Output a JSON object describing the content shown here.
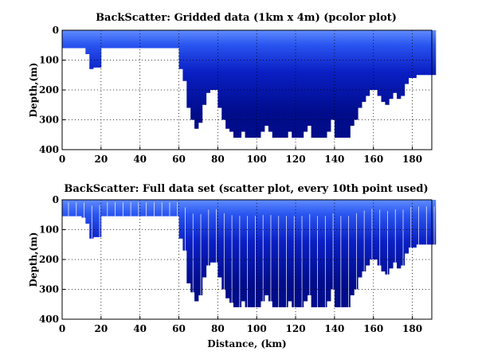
{
  "chart_data": [
    {
      "type": "heatmap",
      "title": "BackScatter: Gridded data (1km x 4m) (pcolor plot)",
      "xlabel": "",
      "ylabel": "Depth,(m)",
      "xlim": [
        0,
        190
      ],
      "ylim": [
        400,
        0
      ],
      "xticks": [
        0,
        20,
        40,
        60,
        80,
        100,
        120,
        140,
        160,
        180
      ],
      "yticks": [
        0,
        100,
        200,
        300,
        400
      ],
      "grid": true,
      "colors": {
        "deep": "#000c8a",
        "mid": "#0a1fc4",
        "shallow": "#2a55f0",
        "surface": "#5f8cff"
      },
      "x": [
        0,
        2,
        4,
        6,
        8,
        10,
        12,
        14,
        16,
        18,
        20,
        22,
        24,
        26,
        28,
        30,
        32,
        34,
        36,
        38,
        40,
        42,
        44,
        46,
        48,
        50,
        52,
        54,
        56,
        58,
        60,
        62,
        64,
        66,
        68,
        70,
        72,
        74,
        76,
        78,
        80,
        82,
        84,
        86,
        88,
        90,
        92,
        94,
        96,
        98,
        100,
        102,
        104,
        106,
        108,
        110,
        112,
        114,
        116,
        118,
        120,
        122,
        124,
        126,
        128,
        130,
        132,
        134,
        136,
        138,
        140,
        142,
        144,
        146,
        148,
        150,
        152,
        154,
        156,
        158,
        160,
        162,
        164,
        166,
        168,
        170,
        172,
        174,
        176,
        178,
        180,
        182,
        184,
        186,
        188,
        190
      ],
      "max_depth": [
        60,
        60,
        60,
        60,
        60,
        60,
        80,
        130,
        125,
        125,
        60,
        60,
        60,
        60,
        60,
        60,
        60,
        60,
        60,
        60,
        60,
        60,
        60,
        60,
        60,
        60,
        60,
        60,
        60,
        60,
        130,
        170,
        260,
        300,
        330,
        310,
        250,
        210,
        200,
        200,
        260,
        300,
        330,
        340,
        360,
        360,
        340,
        360,
        360,
        360,
        360,
        340,
        320,
        340,
        360,
        360,
        360,
        360,
        340,
        360,
        360,
        360,
        340,
        320,
        360,
        360,
        360,
        360,
        340,
        300,
        360,
        360,
        360,
        360,
        320,
        300,
        260,
        240,
        220,
        200,
        200,
        220,
        240,
        250,
        230,
        210,
        230,
        220,
        180,
        160,
        160,
        150,
        150,
        150,
        150,
        150
      ]
    },
    {
      "type": "scatter",
      "title": "BackScatter: Full data set (scatter plot, every 10th point used)",
      "xlabel": "Distance, (km)",
      "ylabel": "Depth,(m)",
      "xlim": [
        0,
        190
      ],
      "ylim": [
        400,
        0
      ],
      "xticks": [
        0,
        20,
        40,
        60,
        80,
        100,
        120,
        140,
        160,
        180
      ],
      "yticks": [
        0,
        100,
        200,
        300,
        400
      ],
      "grid": true,
      "colors": {
        "deep": "#000c8a",
        "mid": "#0a1fc4",
        "shallow": "#2a55f0",
        "surface": "#5f8cff"
      },
      "x": [
        0,
        2,
        4,
        6,
        8,
        10,
        12,
        14,
        16,
        18,
        20,
        22,
        24,
        26,
        28,
        30,
        32,
        34,
        36,
        38,
        40,
        42,
        44,
        46,
        48,
        50,
        52,
        54,
        56,
        58,
        60,
        62,
        64,
        66,
        68,
        70,
        72,
        74,
        76,
        78,
        80,
        82,
        84,
        86,
        88,
        90,
        92,
        94,
        96,
        98,
        100,
        102,
        104,
        106,
        108,
        110,
        112,
        114,
        116,
        118,
        120,
        122,
        124,
        126,
        128,
        130,
        132,
        134,
        136,
        138,
        140,
        142,
        144,
        146,
        148,
        150,
        152,
        154,
        156,
        158,
        160,
        162,
        164,
        166,
        168,
        170,
        172,
        174,
        176,
        178,
        180,
        182,
        184,
        186,
        188,
        190
      ],
      "max_depth": [
        55,
        55,
        55,
        55,
        55,
        60,
        80,
        130,
        125,
        125,
        55,
        55,
        55,
        55,
        55,
        55,
        55,
        55,
        55,
        55,
        55,
        55,
        55,
        55,
        55,
        55,
        55,
        55,
        55,
        55,
        130,
        170,
        280,
        310,
        340,
        320,
        260,
        220,
        210,
        210,
        260,
        300,
        330,
        345,
        360,
        360,
        340,
        360,
        360,
        360,
        360,
        340,
        320,
        340,
        360,
        360,
        360,
        360,
        340,
        360,
        360,
        360,
        340,
        320,
        360,
        360,
        360,
        360,
        340,
        300,
        360,
        360,
        360,
        360,
        320,
        300,
        260,
        240,
        220,
        200,
        200,
        220,
        240,
        250,
        230,
        210,
        230,
        220,
        180,
        160,
        160,
        150,
        150,
        150,
        150,
        150
      ]
    }
  ]
}
